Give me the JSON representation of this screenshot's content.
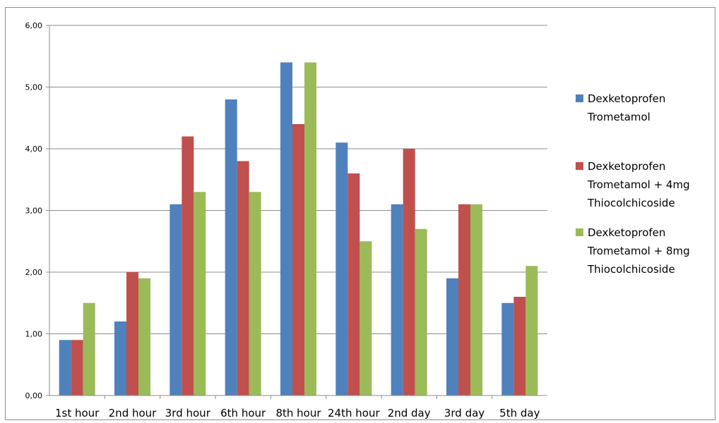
{
  "chart_data": {
    "type": "bar",
    "categories": [
      "1st hour",
      "2nd hour",
      "3rd hour",
      "6th hour",
      "8th hour",
      "24th hour",
      "2nd day",
      "3rd day",
      "5th day"
    ],
    "series": [
      {
        "name": "Dexketoprofen Trometamol",
        "legend_lines": [
          "Dexketoprofen",
          "Trometamol"
        ],
        "color": "#4f81bd",
        "values": [
          0.9,
          1.2,
          3.1,
          4.8,
          5.4,
          4.1,
          3.1,
          1.9,
          1.5
        ]
      },
      {
        "name": "Dexketoprofen Trometamol + 4mg Thiocolchicoside",
        "legend_lines": [
          "Dexketoprofen",
          "Trometamol + 4mg",
          "Thiocolchicoside"
        ],
        "color": "#c0504d",
        "values": [
          0.9,
          2.0,
          4.2,
          3.8,
          4.4,
          3.6,
          4.0,
          3.1,
          1.6
        ]
      },
      {
        "name": "Dexketoprofen Trometamol + 8mg Thiocolchicoside",
        "legend_lines": [
          "Dexketoprofen",
          "Trometamol + 8mg",
          "Thiocolchicoside"
        ],
        "color": "#9bbb59",
        "values": [
          1.5,
          1.9,
          3.3,
          3.3,
          5.4,
          2.5,
          2.7,
          3.1,
          2.1
        ]
      }
    ],
    "y_ticks": [
      "0,00",
      "1,00",
      "2,00",
      "3,00",
      "4,00",
      "5,00",
      "6,00"
    ],
    "ylim": [
      0,
      6
    ],
    "grid": true,
    "legend_position": "right",
    "title": "",
    "xlabel": "",
    "ylabel": ""
  }
}
